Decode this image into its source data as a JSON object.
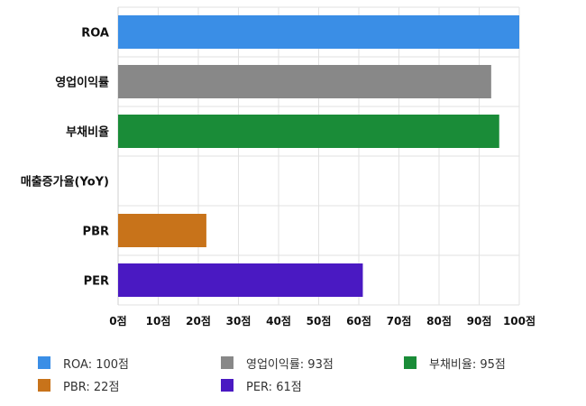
{
  "chart_data": {
    "type": "bar",
    "orientation": "horizontal",
    "categories": [
      "ROA",
      "영업이익률",
      "부채비율",
      "매출증가율(YoY)",
      "PBR",
      "PER"
    ],
    "values": [
      100,
      93,
      95,
      0,
      22,
      61
    ],
    "colors": [
      "#3a8ee6",
      "#888888",
      "#1a8c38",
      "#cccccc",
      "#c8731a",
      "#4a19c2"
    ],
    "xlim": [
      0,
      100
    ],
    "ticks": [
      0,
      10,
      20,
      30,
      40,
      50,
      60,
      70,
      80,
      90,
      100
    ],
    "tick_labels": [
      "0점",
      "10점",
      "20점",
      "30점",
      "40점",
      "50점",
      "60점",
      "70점",
      "80점",
      "90점",
      "100점"
    ],
    "grid": true,
    "legend_position": "bottom",
    "legend": [
      {
        "label": "ROA: 100점",
        "color": "#3a8ee6"
      },
      {
        "label": "영업이익률: 93점",
        "color": "#888888"
      },
      {
        "label": "부채비율: 95점",
        "color": "#1a8c38"
      },
      {
        "label": "PBR: 22점",
        "color": "#c8731a"
      },
      {
        "label": "PER: 61점",
        "color": "#4a19c2"
      }
    ]
  }
}
